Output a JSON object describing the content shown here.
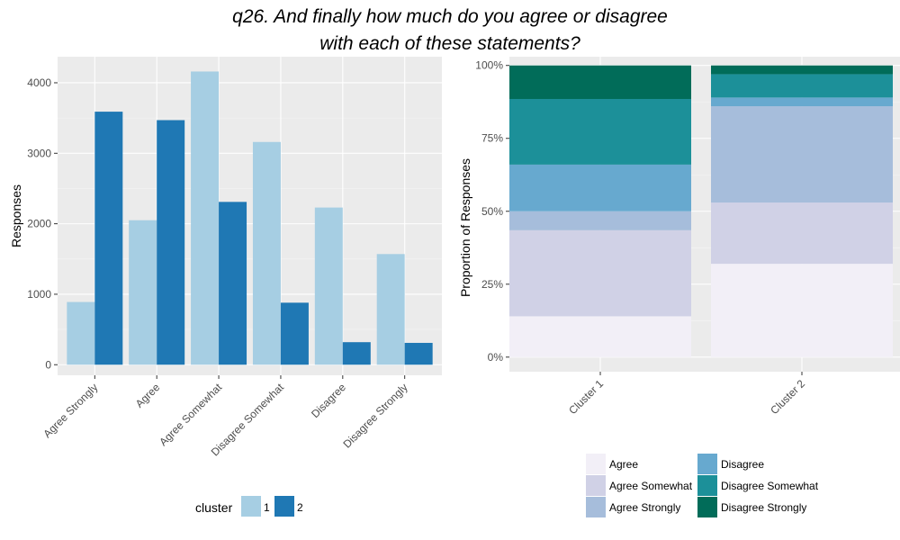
{
  "title_lines": [
    "q26. And finally how much do you agree or disagree",
    "with each of these statements?"
  ],
  "chart_data": [
    {
      "type": "bar",
      "categories": [
        "Agree Strongly",
        "Agree",
        "Agree Somewhat",
        "Disagree Somewhat",
        "Disagree",
        "Disagree Strongly"
      ],
      "series": [
        {
          "name": "1",
          "values": [
            890,
            2050,
            4160,
            3160,
            2230,
            1570
          ],
          "color": "#a6cee3"
        },
        {
          "name": "2",
          "values": [
            3590,
            3470,
            2310,
            880,
            320,
            310
          ],
          "color": "#1f78b4"
        }
      ],
      "xlabel": "",
      "ylabel": "Responses",
      "ylim": [
        -150,
        4370
      ],
      "yticks": [
        0,
        1000,
        2000,
        3000,
        4000
      ],
      "grid": true,
      "legend": {
        "title": "cluster",
        "placement": "bottom"
      }
    },
    {
      "type": "stacked-bar",
      "categories": [
        "Cluster 1",
        "Cluster 2"
      ],
      "series": [
        {
          "name": "Agree",
          "values": [
            0.14,
            0.32
          ],
          "color": "#f2eff7"
        },
        {
          "name": "Agree Somewhat",
          "values": [
            0.295,
            0.21
          ],
          "color": "#d0d1e6"
        },
        {
          "name": "Agree Strongly",
          "values": [
            0.065,
            0.33
          ],
          "color": "#a6bddb"
        },
        {
          "name": "Disagree",
          "values": [
            0.16,
            0.03
          ],
          "color": "#67a9cf"
        },
        {
          "name": "Disagree Somewhat",
          "values": [
            0.225,
            0.08
          ],
          "color": "#1c9099"
        },
        {
          "name": "Disagree Strongly",
          "values": [
            0.115,
            0.03
          ],
          "color": "#016c59"
        }
      ],
      "xlabel": "",
      "ylabel": "Proportion of Responses",
      "ylim": [
        -0.05,
        1.03
      ],
      "yticks": [
        0,
        0.25,
        0.5,
        0.75,
        1
      ],
      "ytick_labels": [
        "0%",
        "25%",
        "50%",
        "75%",
        "100%"
      ],
      "grid": true,
      "legend": {
        "placement": "bottom"
      }
    }
  ]
}
